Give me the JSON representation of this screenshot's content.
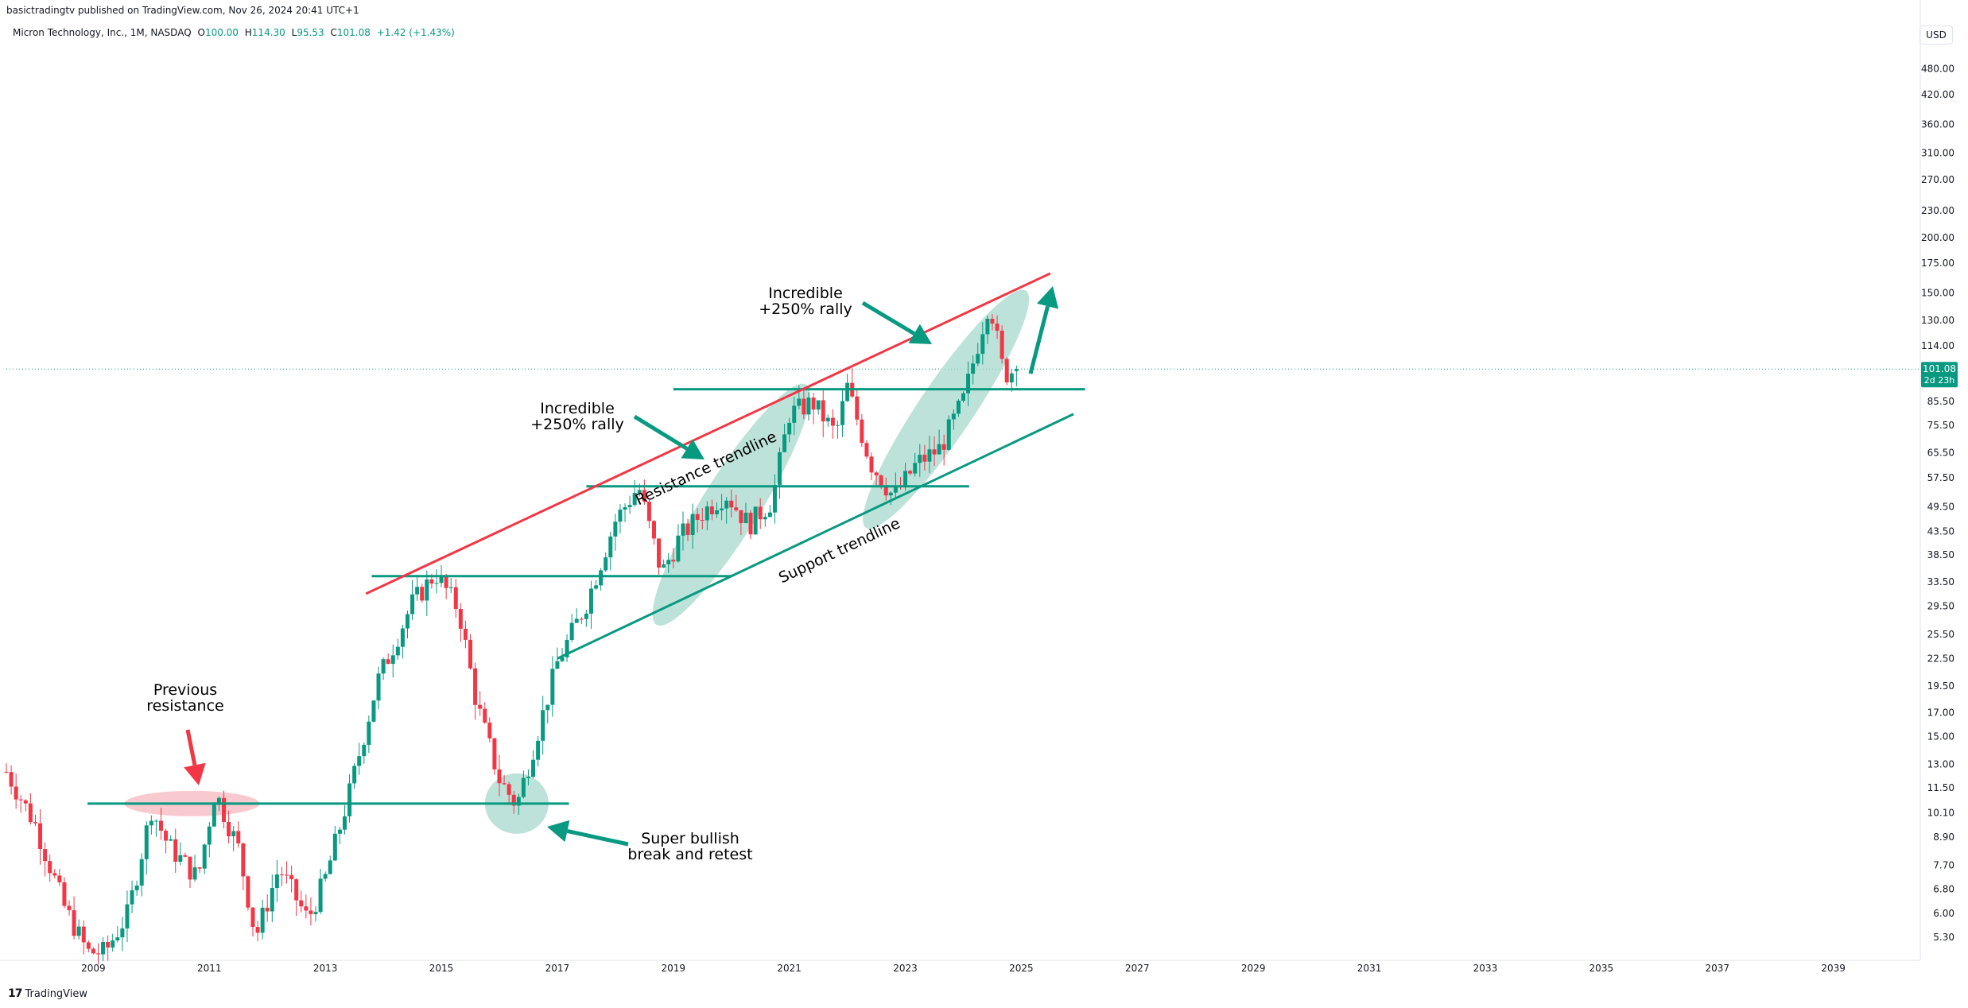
{
  "header": {
    "publish_line": "basictradingtv published on TradingView.com, Nov 26, 2024 20:41 UTC+1",
    "symbol": "Micron Technology, Inc., 1M, NASDAQ",
    "o_label": "O",
    "o_value": "100.00",
    "h_label": "H",
    "h_value": "114.30",
    "l_label": "L",
    "l_value": "95.53",
    "c_label": "C",
    "c_value": "101.08",
    "change": "+1.42 (+1.43%)",
    "currency": "USD"
  },
  "price_badge": {
    "price": "101.08",
    "countdown": "2d 23h"
  },
  "footer": {
    "logo": "TradingView",
    "logo_mark": "17"
  },
  "annotations": {
    "previous_resistance": [
      "Previous",
      "resistance"
    ],
    "super_bullish": [
      "Super bullish",
      "break and retest"
    ],
    "rally_1": [
      "Incredible",
      "+250% rally"
    ],
    "rally_2": [
      "Incredible",
      "+250% rally"
    ],
    "resistance_trendline": "Resistance trendline",
    "support_trendline": "Support trendline"
  },
  "colors": {
    "up": "#089981",
    "down": "#f23645",
    "resistance_line": "#f23645",
    "level_line": "#089981",
    "ellipse_green": "#a7d8cc",
    "ellipse_red": "#f5b7bd",
    "badge": "#089981"
  },
  "chart_data": {
    "type": "candlestick",
    "title": "Micron Technology, Inc., 1M, NASDAQ",
    "scale": "log",
    "ylim": [
      4.7,
      540
    ],
    "y_ticks": [
      "480.00",
      "420.00",
      "360.00",
      "310.00",
      "270.00",
      "230.00",
      "200.00",
      "175.00",
      "150.00",
      "130.00",
      "114.00",
      "101.08",
      "85.50",
      "75.50",
      "65.50",
      "57.50",
      "49.50",
      "43.50",
      "38.50",
      "33.50",
      "29.50",
      "25.50",
      "22.50",
      "19.50",
      "17.00",
      "15.00",
      "13.00",
      "11.50",
      "10.10",
      "8.90",
      "7.70",
      "6.80",
      "6.00",
      "5.30"
    ],
    "x_ticks": [
      "2009",
      "2011",
      "2013",
      "2015",
      "2017",
      "2019",
      "2021",
      "2023",
      "2025",
      "2027",
      "2029",
      "2031",
      "2033",
      "2035",
      "2037",
      "2039"
    ],
    "xlim": [
      2007.5,
      2040.5
    ],
    "candle_anchors": [
      [
        2007.5,
        12.5
      ],
      [
        2008.0,
        9.5
      ],
      [
        2008.5,
        6.2
      ],
      [
        2008.9,
        4.9
      ],
      [
        2009.2,
        4.9
      ],
      [
        2009.6,
        6.0
      ],
      [
        2010.0,
        10.3
      ],
      [
        2010.3,
        8.5
      ],
      [
        2010.8,
        7.2
      ],
      [
        2011.1,
        11.3
      ],
      [
        2011.5,
        8.4
      ],
      [
        2011.8,
        5.3
      ],
      [
        2012.2,
        7.6
      ],
      [
        2012.7,
        5.8
      ],
      [
        2013.0,
        7.2
      ],
      [
        2013.4,
        11.0
      ],
      [
        2013.9,
        20.0
      ],
      [
        2014.5,
        30.0
      ],
      [
        2014.9,
        35.0
      ],
      [
        2015.3,
        29.0
      ],
      [
        2015.6,
        18.0
      ],
      [
        2016.0,
        12.0
      ],
      [
        2016.3,
        10.5
      ],
      [
        2016.7,
        16.0
      ],
      [
        2017.0,
        22.0
      ],
      [
        2017.5,
        30.0
      ],
      [
        2018.0,
        46.0
      ],
      [
        2018.4,
        55.0
      ],
      [
        2018.8,
        35.0
      ],
      [
        2019.1,
        42.0
      ],
      [
        2019.5,
        48.0
      ],
      [
        2019.9,
        53.0
      ],
      [
        2020.3,
        45.0
      ],
      [
        2020.7,
        51.0
      ],
      [
        2021.0,
        80.0
      ],
      [
        2021.4,
        85.0
      ],
      [
        2021.8,
        72.0
      ],
      [
        2022.0,
        92.0
      ],
      [
        2022.4,
        62.0
      ],
      [
        2022.8,
        52.0
      ],
      [
        2023.2,
        62.0
      ],
      [
        2023.6,
        67.0
      ],
      [
        2024.0,
        86.0
      ],
      [
        2024.45,
        145.0
      ],
      [
        2024.7,
        98.0
      ],
      [
        2024.9,
        101.08
      ]
    ],
    "last_price": 101.08,
    "horizontal_levels": [
      {
        "value": 10.6,
        "x_from": 2008.9,
        "x_to": 2017.2
      },
      {
        "value": 34.5,
        "x_from": 2013.8,
        "x_to": 2020.0
      },
      {
        "value": 55.0,
        "x_from": 2017.5,
        "x_to": 2024.1
      },
      {
        "value": 91.0,
        "x_from": 2019.0,
        "x_to": 2026.1
      }
    ],
    "trendlines": [
      {
        "name": "Resistance trendline",
        "from": [
          2013.7,
          31.5
        ],
        "to": [
          2025.5,
          166.0
        ]
      },
      {
        "name": "Support trendline",
        "from": [
          2017.0,
          22.5
        ],
        "to": [
          2025.9,
          80.0
        ]
      }
    ]
  }
}
